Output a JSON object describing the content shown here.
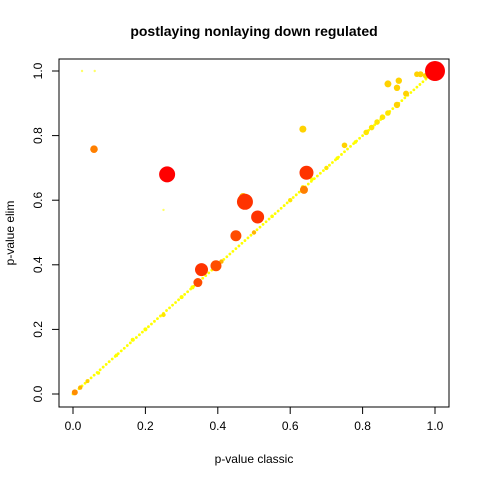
{
  "chart_data": {
    "type": "scatter",
    "title": "postlaying nonlaying down regulated",
    "xlabel": "p-value classic",
    "ylabel": "p-value elim",
    "xlim": [
      0,
      1
    ],
    "ylim": [
      0,
      1
    ],
    "x_ticks": [
      "0.0",
      "0.2",
      "0.4",
      "0.6",
      "0.8",
      "1.0"
    ],
    "y_ticks": [
      "0.0",
      "0.2",
      "0.4",
      "0.6",
      "0.8",
      "1.0"
    ],
    "grid": false,
    "legend": "none",
    "colors": {
      "red": "#ff0000",
      "red_orange": "#ff3300",
      "orange_red": "#ff4d00",
      "orange": "#ff8c00",
      "dark_orange": "#ff7f00",
      "amber": "#ffb400",
      "gold": "#ffd200",
      "yellow_gold": "#ffe600",
      "yellow": "#ffff00",
      "light_yellow": "#ffff66"
    },
    "points": [
      {
        "x": 1.0,
        "y": 1.0,
        "size": 10,
        "color": "red"
      },
      {
        "x": 0.26,
        "y": 0.68,
        "size": 8,
        "color": "red"
      },
      {
        "x": 0.475,
        "y": 0.595,
        "size": 8,
        "color": "red_orange"
      },
      {
        "x": 0.645,
        "y": 0.685,
        "size": 7,
        "color": "red_orange"
      },
      {
        "x": 0.51,
        "y": 0.548,
        "size": 6.5,
        "color": "red_orange"
      },
      {
        "x": 0.355,
        "y": 0.385,
        "size": 6.5,
        "color": "red_orange"
      },
      {
        "x": 0.395,
        "y": 0.397,
        "size": 5.5,
        "color": "orange_red"
      },
      {
        "x": 0.45,
        "y": 0.49,
        "size": 5.5,
        "color": "orange_red"
      },
      {
        "x": 0.345,
        "y": 0.345,
        "size": 4.5,
        "color": "orange_red"
      },
      {
        "x": 0.638,
        "y": 0.632,
        "size": 4,
        "color": "dark_orange"
      },
      {
        "x": 0.058,
        "y": 0.758,
        "size": 3.8,
        "color": "dark_orange"
      },
      {
        "x": 0.47,
        "y": 0.61,
        "size": 4,
        "color": "amber"
      },
      {
        "x": 0.635,
        "y": 0.82,
        "size": 3.5,
        "color": "gold"
      },
      {
        "x": 0.87,
        "y": 0.96,
        "size": 3.5,
        "color": "gold"
      },
      {
        "x": 0.9,
        "y": 0.97,
        "size": 3.2,
        "color": "gold"
      },
      {
        "x": 0.895,
        "y": 0.948,
        "size": 3.2,
        "color": "gold"
      },
      {
        "x": 0.895,
        "y": 0.895,
        "size": 3.2,
        "color": "gold"
      },
      {
        "x": 0.96,
        "y": 0.99,
        "size": 3,
        "color": "gold"
      },
      {
        "x": 0.975,
        "y": 0.985,
        "size": 3,
        "color": "gold"
      },
      {
        "x": 0.95,
        "y": 0.99,
        "size": 2.8,
        "color": "gold"
      },
      {
        "x": 0.92,
        "y": 0.93,
        "size": 3,
        "color": "gold"
      },
      {
        "x": 0.005,
        "y": 0.005,
        "size": 3,
        "color": "orange"
      },
      {
        "x": 0.5,
        "y": 0.5,
        "size": 2.2,
        "color": "amber"
      },
      {
        "x": 0.41,
        "y": 0.41,
        "size": 2.2,
        "color": "amber"
      },
      {
        "x": 0.02,
        "y": 0.02,
        "size": 2.2,
        "color": "amber"
      },
      {
        "x": 0.04,
        "y": 0.04,
        "size": 2,
        "color": "gold"
      },
      {
        "x": 0.75,
        "y": 0.77,
        "size": 2.8,
        "color": "gold"
      },
      {
        "x": 0.81,
        "y": 0.81,
        "size": 2.8,
        "color": "yellow_gold"
      },
      {
        "x": 0.825,
        "y": 0.825,
        "size": 2.8,
        "color": "yellow_gold"
      },
      {
        "x": 0.84,
        "y": 0.842,
        "size": 2.8,
        "color": "yellow_gold"
      },
      {
        "x": 0.855,
        "y": 0.857,
        "size": 2.8,
        "color": "yellow_gold"
      },
      {
        "x": 0.87,
        "y": 0.87,
        "size": 2.8,
        "color": "yellow_gold"
      },
      {
        "x": 0.6,
        "y": 0.6,
        "size": 2.2,
        "color": "yellow_gold"
      },
      {
        "x": 0.635,
        "y": 0.64,
        "size": 2.2,
        "color": "yellow_gold"
      },
      {
        "x": 0.7,
        "y": 0.7,
        "size": 2.2,
        "color": "yellow_gold"
      },
      {
        "x": 0.25,
        "y": 0.245,
        "size": 2.2,
        "color": "yellow_gold"
      },
      {
        "x": 0.165,
        "y": 0.168,
        "size": 2,
        "color": "yellow"
      },
      {
        "x": 0.2,
        "y": 0.2,
        "size": 2,
        "color": "yellow"
      },
      {
        "x": 0.3,
        "y": 0.3,
        "size": 2,
        "color": "yellow"
      },
      {
        "x": 0.33,
        "y": 0.33,
        "size": 2,
        "color": "yellow"
      },
      {
        "x": 0.12,
        "y": 0.12,
        "size": 1.8,
        "color": "yellow"
      },
      {
        "x": 0.07,
        "y": 0.065,
        "size": 1.8,
        "color": "yellow"
      },
      {
        "x": 0.55,
        "y": 0.55,
        "size": 1.8,
        "color": "yellow"
      },
      {
        "x": 0.66,
        "y": 0.665,
        "size": 1.8,
        "color": "yellow"
      },
      {
        "x": 0.73,
        "y": 0.73,
        "size": 1.8,
        "color": "yellow"
      },
      {
        "x": 0.78,
        "y": 0.78,
        "size": 1.8,
        "color": "yellow"
      },
      {
        "x": 0.025,
        "y": 1.0,
        "size": 1.2,
        "color": "light_yellow"
      },
      {
        "x": 0.06,
        "y": 1.0,
        "size": 1.2,
        "color": "light_yellow"
      },
      {
        "x": 0.25,
        "y": 0.57,
        "size": 1.2,
        "color": "light_yellow"
      }
    ],
    "diagonal_band": {
      "from": 0.0,
      "to": 1.0,
      "color": "yellow",
      "density": 120
    }
  }
}
